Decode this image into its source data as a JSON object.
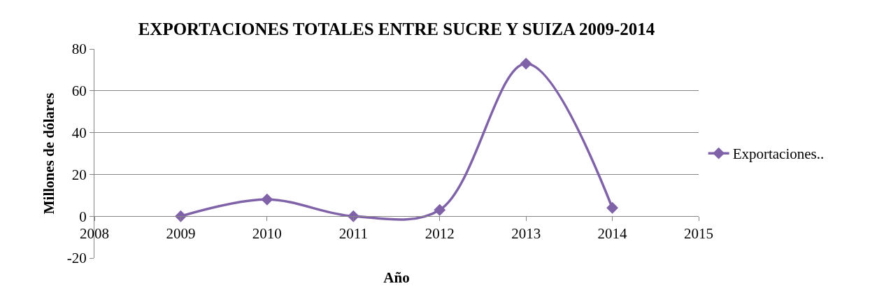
{
  "chart_data": {
    "type": "line",
    "title": "EXPORTACIONES TOTALES ENTRE SUCRE Y SUIZA 2009-2014",
    "xlabel": "Año",
    "ylabel": "Millones de dólares",
    "x": [
      2009,
      2010,
      2011,
      2012,
      2013,
      2014
    ],
    "series": [
      {
        "name": "Exportaciones..",
        "color": "#7f62a8",
        "values": [
          0,
          8,
          0,
          3,
          73,
          4
        ]
      }
    ],
    "xlim": [
      2008,
      2015
    ],
    "xticks": [
      2008,
      2009,
      2010,
      2011,
      2012,
      2013,
      2014,
      2015
    ],
    "ylim": [
      -20,
      80
    ],
    "yticks": [
      -20,
      0,
      20,
      40,
      60,
      80
    ],
    "grid": "y",
    "legend": "right",
    "marker": "diamond",
    "line_style": "solid"
  }
}
